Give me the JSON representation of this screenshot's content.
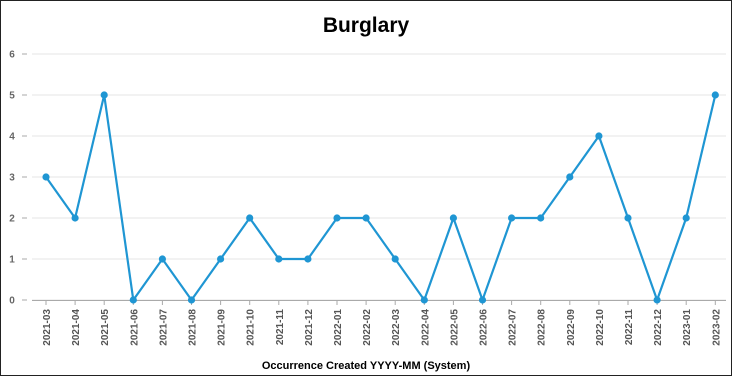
{
  "chart_data": {
    "type": "line",
    "title": "Burglary",
    "xlabel": "Occurrence Created YYYY-MM (System)",
    "ylabel": "",
    "ylim": [
      0,
      6
    ],
    "yticks": [
      "0",
      "1",
      "2",
      "3",
      "4",
      "5",
      "6"
    ],
    "grid": true,
    "categories": [
      "2021-03",
      "2021-04",
      "2021-05",
      "2021-06",
      "2021-07",
      "2021-08",
      "2021-09",
      "2021-10",
      "2021-11",
      "2021-12",
      "2022-01",
      "2022-02",
      "2022-03",
      "2022-04",
      "2022-05",
      "2022-06",
      "2022-07",
      "2022-08",
      "2022-09",
      "2022-10",
      "2022-11",
      "2022-12",
      "2023-01",
      "2023-02"
    ],
    "series": [
      {
        "values": [
          3,
          2,
          5,
          0,
          1,
          0,
          1,
          2,
          1,
          1,
          2,
          2,
          1,
          0,
          2,
          0,
          2,
          2,
          3,
          4,
          2,
          0,
          2,
          5
        ]
      }
    ],
    "colors": {
      "line": "#1f96d3",
      "grid": "#e6e6e6",
      "axis": "#aaaaaa"
    }
  }
}
